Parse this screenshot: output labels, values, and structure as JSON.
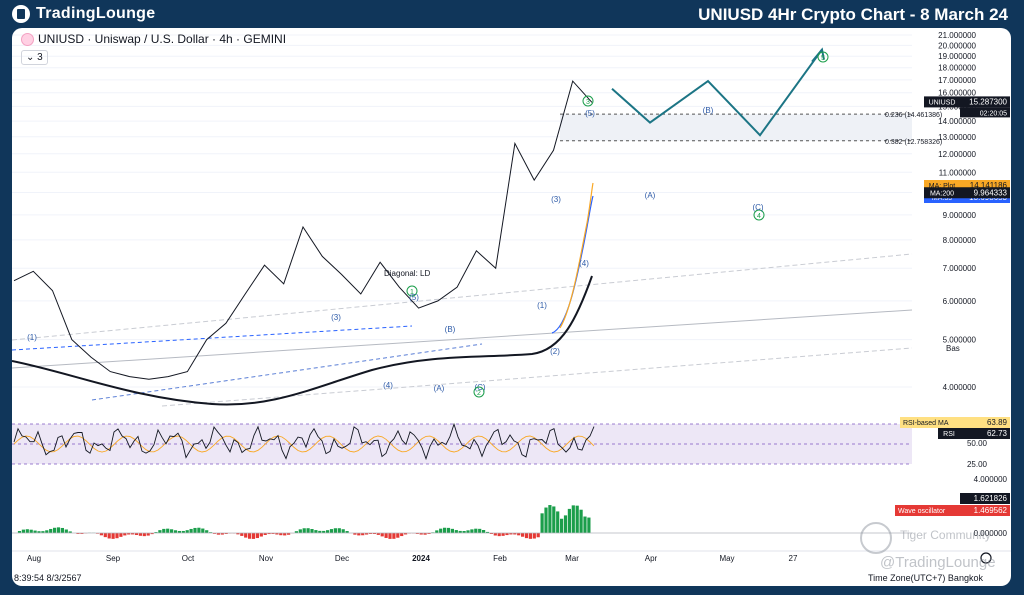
{
  "header": {
    "brand": "TradingLounge",
    "title": "UNIUSD 4Hr Crypto Chart - 8 March 24"
  },
  "legend": {
    "symbol_line": "UNIUSD · Uniswap / U.S. Dollar · 4h · GEMINI",
    "indicator_count": "3"
  },
  "footer": {
    "time": "8:39:54 8/3/2567",
    "timezone": "Time Zone(UTC+7) Bangkok"
  },
  "watermark": {
    "line1": "Tiger Community",
    "line2": "@TradingLounge"
  },
  "colors": {
    "header_bg": "#10365a",
    "price_line": "#131722",
    "ma200": "#131722",
    "ma35": "#2962ff",
    "ma_plot": "#f9a825",
    "projection": "#1c7585",
    "rsi_band": "#7e57c2",
    "osc_up": "#1b9e4b",
    "osc_down": "#e53935"
  },
  "chart_data": {
    "type": "line",
    "title": "UNIUSD · Uniswap / U.S. Dollar · 4h · GEMINI",
    "y_axis_scale": "log",
    "ylim": [
      4.0,
      21.0
    ],
    "y_ticks": [
      "21.000000",
      "20.000000",
      "19.000000",
      "18.000000",
      "17.000000",
      "16.000000",
      "15.000000",
      "14.000000",
      "13.000000",
      "12.000000",
      "11.000000",
      "10.000000",
      "9.000000",
      "8.000000",
      "7.000000",
      "6.000000",
      "5.000000",
      "4.000000"
    ],
    "x_ticks": [
      "Aug",
      "Sep",
      "Oct",
      "Nov",
      "Dec",
      "2024",
      "Feb",
      "Mar",
      "Apr",
      "May",
      "27"
    ],
    "price_series": [
      [
        "Aug",
        6.6
      ],
      [
        "Aug",
        6.9
      ],
      [
        "Aug",
        6.3
      ],
      [
        "Sep",
        5.0
      ],
      [
        "Sep",
        4.6
      ],
      [
        "Sep",
        4.3
      ],
      [
        "Oct",
        4.2
      ],
      [
        "Oct",
        4.15
      ],
      [
        "Oct",
        4.2
      ],
      [
        "Nov",
        4.3
      ],
      [
        "Nov",
        5.0
      ],
      [
        "Nov",
        5.4
      ],
      [
        "Dec",
        6.2
      ],
      [
        "Dec",
        7.1
      ],
      [
        "Dec",
        6.5
      ],
      [
        "Dec",
        8.5
      ],
      [
        "Dec",
        7.4
      ],
      [
        "2024",
        6.8
      ],
      [
        "2024",
        6.2
      ],
      [
        "2024",
        7.2
      ],
      [
        "2024",
        6.4
      ],
      [
        "2024",
        5.8
      ],
      [
        "Feb",
        6.0
      ],
      [
        "Feb",
        6.4
      ],
      [
        "Feb",
        7.6
      ],
      [
        "Feb",
        7.0
      ],
      [
        "Feb",
        12.6
      ],
      [
        "Feb",
        10.6
      ],
      [
        "Mar",
        12.2
      ],
      [
        "Mar",
        16.9
      ],
      [
        "Mar",
        15.29
      ]
    ],
    "projection_path": [
      {
        "label": "",
        "x": "Mar",
        "y": 16.3
      },
      {
        "label": "(A)",
        "x": "Apr",
        "y": 13.9
      },
      {
        "label": "(B)",
        "x": "Apr",
        "y": 16.9
      },
      {
        "label": "(C)",
        "x": "May",
        "y": 13.1
      },
      {
        "label": "5",
        "x": "May",
        "y": 19.6
      }
    ],
    "wave_labels": [
      "(1)",
      "(3)",
      "(4)",
      "(A)",
      "(B)",
      "(C)",
      "(1)",
      "(2)",
      "(3)",
      "(4)",
      "(5)",
      "1",
      "2",
      "3",
      "4",
      "5",
      "(A)",
      "(B)",
      "(C)",
      "(5)"
    ],
    "annotations": [
      "Diagonal: LD",
      "Bas",
      "0.236 (14.461386)",
      "0.382 (12.758326)"
    ],
    "price_labels": [
      {
        "name": "UNIUSD",
        "value": "15.287300",
        "sub": "02:20:05"
      },
      {
        "name": "MA: Plot",
        "value": "14.141186"
      },
      {
        "name": "MA:35",
        "value": "13.698653"
      },
      {
        "name": "MA:200",
        "value": "9.964333"
      }
    ],
    "fib_levels": [
      {
        "label": "0.236 (14.461386)",
        "value": 14.461386
      },
      {
        "label": "0.382 (12.758326)",
        "value": 12.758326
      }
    ],
    "rsi": {
      "ticks": [
        "50.00",
        "25.00"
      ],
      "labels": [
        {
          "name": "RSI-based MA",
          "value": "63.89"
        },
        {
          "name": "RSI",
          "value": "62.73"
        }
      ]
    },
    "oscillator": {
      "ticks": [
        "4.000000",
        "0.000000"
      ],
      "labels": [
        {
          "name": "",
          "value": "1.621826"
        },
        {
          "name": "Wave oscillator",
          "value": "1.469562"
        }
      ]
    }
  }
}
